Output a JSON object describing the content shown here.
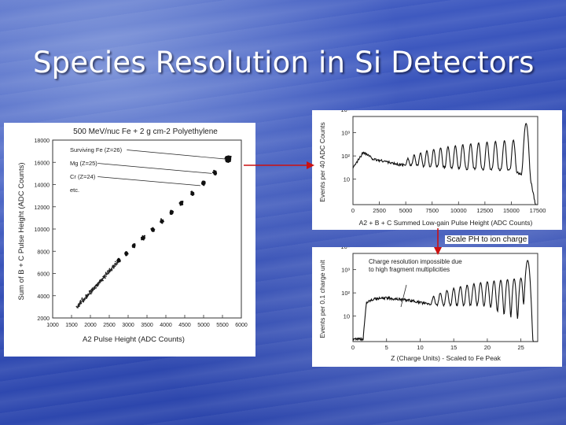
{
  "slide": {
    "title": "Species Resolution in Si Detectors",
    "note": "Scale PH to ion charge"
  },
  "colors": {
    "arrow": "#cc1111"
  },
  "chart_data": [
    {
      "type": "scatter",
      "title": "500 MeV/nuc Fe + 2 g cm-2 Polyethylene",
      "xlabel": "A2 Pulse Height (ADC Counts)",
      "ylabel": "Sum of B + C Pulse Height (ADC Counts)",
      "xlim": [
        1000,
        6000
      ],
      "ylim": [
        2000,
        18000
      ],
      "xticks": [
        "1000",
        "1500",
        "2000",
        "2500",
        "3000",
        "3500",
        "4000",
        "4500",
        "5000",
        "5500",
        "6000"
      ],
      "yticks": [
        "2000",
        "4000",
        "6000",
        "8000",
        "10000",
        "12000",
        "14000",
        "16000",
        "18000"
      ],
      "annotations": [
        {
          "text": "Surviving Fe (Z=26)",
          "x": 5650,
          "y": 16300
        },
        {
          "text": "Mg (Z=25)",
          "x": 5300,
          "y": 15000
        },
        {
          "text": "Cr (Z=24)",
          "x": 5000,
          "y": 13900
        },
        {
          "text": "etc.",
          "x": null,
          "y": null
        }
      ],
      "clusters": [
        {
          "x": 5650,
          "y": 16300
        },
        {
          "x": 5300,
          "y": 15050
        },
        {
          "x": 5000,
          "y": 14150
        },
        {
          "x": 4700,
          "y": 13200
        },
        {
          "x": 4400,
          "y": 12350
        },
        {
          "x": 4150,
          "y": 11500
        },
        {
          "x": 3900,
          "y": 10700
        },
        {
          "x": 3650,
          "y": 9950
        },
        {
          "x": 3400,
          "y": 9200
        },
        {
          "x": 3150,
          "y": 8500
        },
        {
          "x": 2950,
          "y": 7800
        },
        {
          "x": 2750,
          "y": 7150
        }
      ],
      "trend_start": {
        "x": 1650,
        "y": 3000
      }
    },
    {
      "type": "line",
      "xlabel": "A2 + B + C Summed Low-gain Pulse Height (ADC Counts)",
      "ylabel": "Events per 40 ADC Counts",
      "log_y": true,
      "xlim": [
        0,
        17500
      ],
      "ylim": [
        0.8,
        5000
      ],
      "xticks": [
        "0",
        "2500",
        "5000",
        "7500",
        "10000",
        "12500",
        "15000",
        "17500"
      ],
      "yticks": [
        "10",
        "10²",
        "10³",
        "10⁴"
      ],
      "peaks_x": [
        5200,
        5800,
        6400,
        7000,
        7650,
        8300,
        9000,
        9700,
        10400,
        11150,
        11900,
        12700,
        13500,
        14350,
        15200
      ],
      "fe_peak": {
        "x": 16400,
        "y": 2500
      },
      "baseline": [
        {
          "x": 0,
          "y": 30
        },
        {
          "x": 1000,
          "y": 150
        },
        {
          "x": 2000,
          "y": 70
        },
        {
          "x": 3000,
          "y": 60
        },
        {
          "x": 4000,
          "y": 45
        },
        {
          "x": 5000,
          "y": 40
        },
        {
          "x": 10000,
          "y": 28
        },
        {
          "x": 15000,
          "y": 25
        },
        {
          "x": 17000,
          "y": 10
        }
      ]
    },
    {
      "type": "line",
      "xlabel": "Z (Charge Units) - Scaled to Fe Peak",
      "ylabel": "Events per 0.1 charge unit",
      "log_y": true,
      "xlim": [
        0,
        27.5
      ],
      "ylim": [
        0.8,
        5000
      ],
      "xticks": [
        "0",
        "5",
        "10",
        "15",
        "20",
        "25"
      ],
      "yticks": [
        "10",
        "10²",
        "10³",
        "10⁴"
      ],
      "annotation": "Charge resolution impossible due to high fragment multiplicities",
      "peaks_x": [
        12,
        13,
        14,
        15,
        16,
        17,
        18,
        19,
        20,
        21,
        22,
        23,
        24,
        25
      ],
      "fe_peak": {
        "x": 26,
        "y": 2500
      },
      "baseline": [
        {
          "x": 0,
          "y": 1
        },
        {
          "x": 1.5,
          "y": 1
        },
        {
          "x": 2,
          "y": 40
        },
        {
          "x": 3,
          "y": 55
        },
        {
          "x": 5,
          "y": 60
        },
        {
          "x": 8,
          "y": 50
        },
        {
          "x": 12,
          "y": 30
        },
        {
          "x": 20,
          "y": 25
        },
        {
          "x": 27,
          "y": 1
        }
      ]
    }
  ]
}
